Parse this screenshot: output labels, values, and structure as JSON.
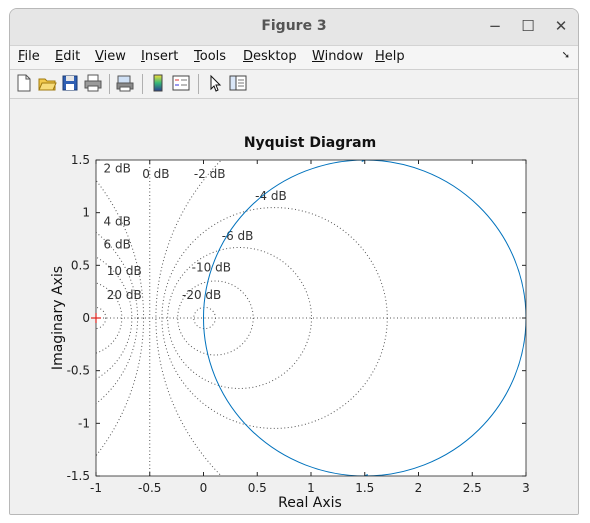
{
  "window": {
    "title": "Figure 3",
    "minimize_glyph": "−",
    "maximize_glyph": "☐",
    "close_glyph": "✕"
  },
  "menu": [
    {
      "key": "F",
      "rest": "ile"
    },
    {
      "key": "E",
      "rest": "dit"
    },
    {
      "key": "V",
      "rest": "iew"
    },
    {
      "key": "I",
      "rest": "nsert"
    },
    {
      "key": "T",
      "rest": "ools"
    },
    {
      "key": "D",
      "rest": "esktop"
    },
    {
      "key": "W",
      "rest": "indow"
    },
    {
      "key": "H",
      "rest": "elp"
    }
  ],
  "toolbar_icons": [
    "new-figure-icon",
    "open-file-icon",
    "save-icon",
    "print-icon",
    "print-preview-icon",
    "insert-colorbar-icon",
    "insert-legend-icon",
    "select-arrow-icon",
    "property-editor-icon"
  ],
  "chart_data": {
    "type": "line",
    "title": "Nyquist Diagram",
    "xlabel": "Real Axis",
    "ylabel": "Imaginary Axis",
    "xlim": [
      -1,
      3
    ],
    "ylim": [
      -1.5,
      1.5
    ],
    "xticks": [
      "-1",
      "-0.5",
      "0",
      "0.5",
      "1",
      "1.5",
      "2",
      "2.5",
      "3"
    ],
    "yticks": [
      "1.5",
      "1",
      "0.5",
      "0",
      "-0.5",
      "-1",
      "-1.5"
    ],
    "series": [
      {
        "curve": "circle",
        "center": [
          1.5,
          0
        ],
        "radius": 1.5,
        "color": "#0072bd"
      }
    ],
    "critical_point": [
      -1,
      0
    ],
    "grid_labels": [
      "2 dB",
      "0 dB",
      "-2 dB",
      "-4 dB",
      "-6 dB",
      "-10 dB",
      "-20 dB",
      "4 dB",
      "6 dB",
      "10 dB",
      "20 dB"
    ],
    "grid_label_points": [
      [
        -0.93,
        1.38
      ],
      [
        -0.57,
        1.33
      ],
      [
        -0.09,
        1.33
      ],
      [
        0.48,
        1.12
      ],
      [
        0.17,
        0.74
      ],
      [
        -0.11,
        0.44
      ],
      [
        -0.2,
        0.18
      ],
      [
        -0.93,
        0.88
      ],
      [
        -0.93,
        0.66
      ],
      [
        -0.9,
        0.41
      ],
      [
        -0.9,
        0.18
      ]
    ],
    "mcircle_db": [
      2,
      4,
      6,
      10,
      20,
      -2,
      -4,
      -6,
      -10,
      -20
    ]
  }
}
